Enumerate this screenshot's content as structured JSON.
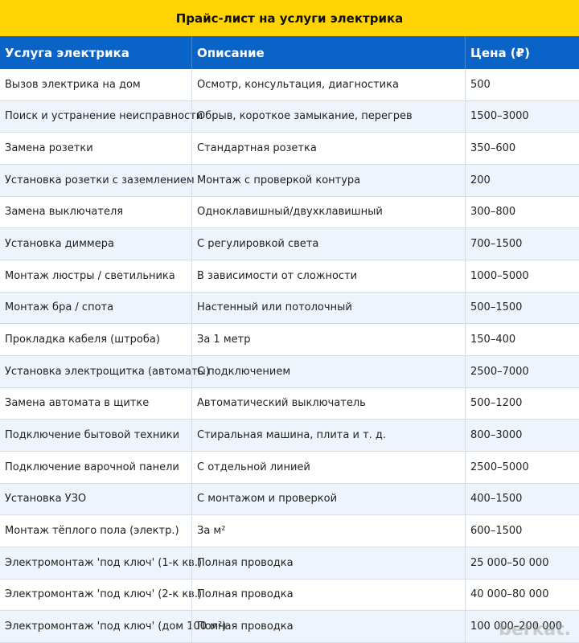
{
  "header": {
    "title": "Прайс-лист на услуги электрика"
  },
  "table": {
    "columns": [
      "Услуга электрика",
      "Описание",
      "Цена (₽)"
    ],
    "rows": [
      [
        "Вызов электрика на дом",
        "Осмотр, консультация, диагностика",
        "500"
      ],
      [
        "Поиск и устранение неисправности",
        "Обрыв, короткое замыкание, перегрев",
        "1500–3000"
      ],
      [
        "Замена розетки",
        "Стандартная розетка",
        "350–600"
      ],
      [
        "Установка розетки с заземлением",
        "Монтаж с проверкой контура",
        "200"
      ],
      [
        "Замена выключателя",
        "Одноклавишный/двухклавишный",
        "300–800"
      ],
      [
        "Установка диммера",
        "С регулировкой света",
        "700–1500"
      ],
      [
        "Монтаж люстры / светильника",
        "В зависимости от сложности",
        "1000–5000"
      ],
      [
        "Монтаж бра / спота",
        "Настенный или потолочный",
        "500–1500"
      ],
      [
        "Прокладка кабеля (штроба)",
        "За 1 метр",
        "150–400"
      ],
      [
        "Установка электрощитка (автоматы)",
        "С подключением",
        "2500–7000"
      ],
      [
        "Замена автомата в щитке",
        "Автоматический выключатель",
        "500–1200"
      ],
      [
        "Подключение бытовой техники",
        "Стиральная машина, плита и т. д.",
        "800–3000"
      ],
      [
        "Подключение варочной панели",
        "С отдельной линией",
        "2500–5000"
      ],
      [
        "Установка УЗО",
        "С монтажом и проверкой",
        "400–1500"
      ],
      [
        "Монтаж тёплого пола (электр.)",
        "За м²",
        "600–1500"
      ],
      [
        "Электромонтаж 'под ключ' (1-к кв.)",
        "Полная проводка",
        "25 000–50 000"
      ],
      [
        "Электромонтаж 'под ключ' (2-к кв.)",
        "Полная проводка",
        "40 000–80 000"
      ],
      [
        "Электромонтаж 'под ключ' (дом 100 м²)",
        "Полная проводка",
        "100 000–200 000"
      ]
    ]
  },
  "watermark": "berkat."
}
